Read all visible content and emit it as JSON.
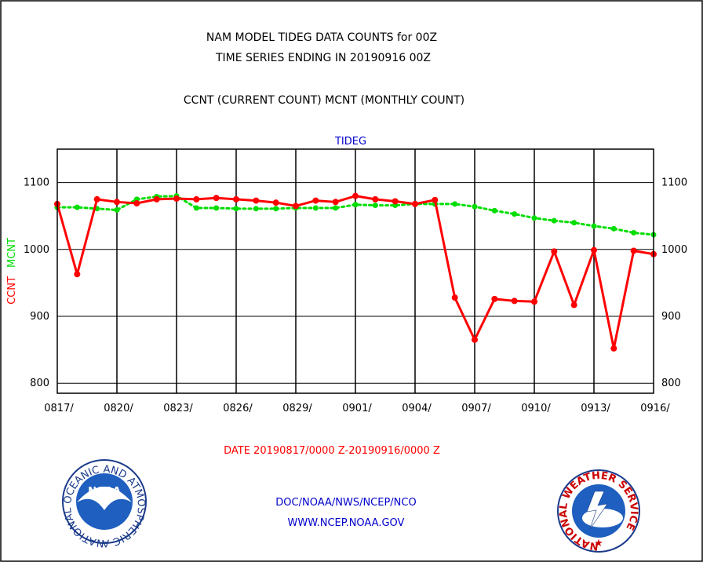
{
  "header": {
    "title_line1": "NAM MODEL TIDEG DATA COUNTS for 00Z",
    "title_line2": "TIME SERIES ENDING IN 20190916 00Z",
    "subtitle": "CCNT (CURRENT COUNT) MCNT (MONTHLY COUNT)"
  },
  "footer": {
    "date_range": "DATE 20190817/0000 Z-20190916/0000 Z",
    "org": "DOC/NOAA/NWS/NCEP/NCO",
    "url": "WWW.NCEP.NOAA.GOV"
  },
  "logos": {
    "noaa_text": "NOAA",
    "noaa_ring": "NATIONAL OCEANIC AND ATMOSPHERIC ADMINISTRATION • U.S. DEPARTMENT OF COMMERCE •",
    "nws_ring": "NATIONAL WEATHER SERVICE"
  },
  "colors": {
    "ccnt": "#ff0000",
    "mcnt": "#00dd00",
    "panel_title": "#0000cc",
    "footer_date": "#ff0000",
    "footer_links": "#0000cc"
  },
  "chart_data": {
    "type": "line",
    "panel_title": "TIDEG",
    "ylabel_ccnt": "CCNT",
    "ylabel_mcnt": "MCNT",
    "xlabel": "",
    "ylim": [
      785,
      1150
    ],
    "yticks": [
      800,
      900,
      1000,
      1100
    ],
    "grid": true,
    "x": [
      "0817",
      "0818",
      "0819",
      "0820",
      "0821",
      "0822",
      "0823",
      "0824",
      "0825",
      "0826",
      "0827",
      "0828",
      "0829",
      "0830",
      "0831",
      "0901",
      "0902",
      "0903",
      "0904",
      "0905",
      "0906",
      "0907",
      "0908",
      "0909",
      "0910",
      "0911",
      "0912",
      "0913",
      "0914",
      "0915",
      "0916"
    ],
    "xtick_labels": [
      "0817/",
      "0820/",
      "0823/",
      "0826/",
      "0829/",
      "0901/",
      "0904/",
      "0907/",
      "0910/",
      "0913/",
      "0916/"
    ],
    "series": [
      {
        "name": "CCNT",
        "values": [
          1068,
          963,
          1075,
          1071,
          1069,
          1075,
          1076,
          1075,
          1077,
          1075,
          1073,
          1070,
          1065,
          1073,
          1071,
          1080,
          1075,
          1072,
          1068,
          1074,
          928,
          865,
          926,
          923,
          922,
          997,
          917,
          999,
          852,
          998,
          993
        ]
      },
      {
        "name": "MCNT",
        "values": [
          1063,
          1063,
          1061,
          1059,
          1075,
          1079,
          1080,
          1062,
          1062,
          1061,
          1061,
          1061,
          1062,
          1062,
          1062,
          1067,
          1066,
          1066,
          1068,
          1068,
          1068,
          1064,
          1058,
          1053,
          1047,
          1043,
          1040,
          1035,
          1031,
          1025,
          1022
        ]
      }
    ]
  }
}
